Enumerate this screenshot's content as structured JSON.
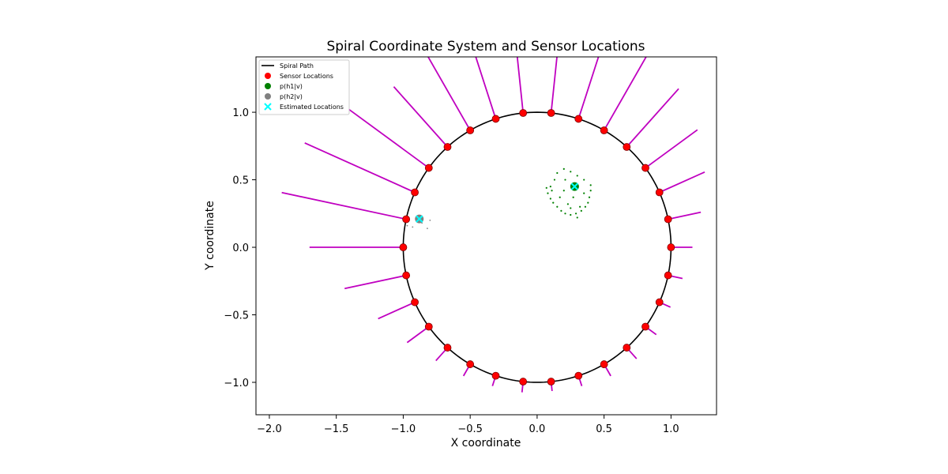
{
  "chart_data": {
    "type": "scatter",
    "title": "Spiral Coordinate System and Sensor Locations",
    "xlabel": "X coordinate",
    "ylabel": "Y coordinate",
    "xlim": [
      -2.1,
      1.34
    ],
    "ylim": [
      -1.24,
      1.41
    ],
    "xticks": [
      -2.0,
      -1.5,
      -1.0,
      -0.5,
      0.0,
      0.5,
      1.0
    ],
    "xtick_labels": [
      "−2.0",
      "−1.5",
      "−1.0",
      "−0.5",
      "0.0",
      "0.5",
      "1.0"
    ],
    "yticks": [
      -1.0,
      -0.5,
      0.0,
      0.5,
      1.0
    ],
    "ytick_labels": [
      "−1.0",
      "−0.5",
      "0.0",
      "0.5",
      "1.0"
    ],
    "grid": false,
    "legend": {
      "location": "upper-left",
      "entries": [
        {
          "label": "Spiral Path",
          "marker": "line",
          "color": "#000000"
        },
        {
          "label": "Sensor Locations",
          "marker": "circle",
          "color": "#ff0000"
        },
        {
          "label": "p(h1|v)",
          "marker": "circle",
          "color": "#008000"
        },
        {
          "label": "p(h2|v)",
          "marker": "circle",
          "color": "#808080"
        },
        {
          "label": "Estimated Locations",
          "marker": "x",
          "color": "#00ffff"
        }
      ]
    },
    "spiral_path": {
      "shape": "circle",
      "center": [
        0,
        0
      ],
      "radius": 1.0,
      "color": "#000000"
    },
    "sensor_color": "#ff0000",
    "sensor_edge_color": "#800000",
    "sensor_angles_deg": [
      0,
      12,
      24,
      36,
      48,
      60,
      72,
      84,
      96,
      108,
      120,
      132,
      144,
      156,
      168,
      180,
      192,
      204,
      216,
      228,
      240,
      252,
      264,
      276,
      288,
      300,
      312,
      324,
      336,
      348
    ],
    "measurement_color": "#c000c0",
    "measurement_lengths": [
      0.16,
      0.25,
      0.37,
      0.48,
      0.58,
      0.65,
      0.71,
      0.75,
      0.76,
      0.72,
      0.66,
      0.6,
      0.74,
      0.9,
      0.95,
      0.7,
      0.47,
      0.3,
      0.2,
      0.13,
      0.1,
      0.08,
      0.08,
      0.07,
      0.08,
      0.1,
      0.11,
      0.1,
      0.09,
      0.11
    ],
    "posterior_h1": {
      "color": "#008000",
      "points": [
        [
          0.13,
          0.5
        ],
        [
          0.15,
          0.55
        ],
        [
          0.2,
          0.58
        ],
        [
          0.25,
          0.56
        ],
        [
          0.3,
          0.53
        ],
        [
          0.35,
          0.5
        ],
        [
          0.4,
          0.46
        ],
        [
          0.4,
          0.42
        ],
        [
          0.39,
          0.37
        ],
        [
          0.36,
          0.3
        ],
        [
          0.33,
          0.27
        ],
        [
          0.29,
          0.25
        ],
        [
          0.25,
          0.24
        ],
        [
          0.21,
          0.25
        ],
        [
          0.18,
          0.27
        ],
        [
          0.15,
          0.3
        ],
        [
          0.12,
          0.33
        ],
        [
          0.1,
          0.36
        ],
        [
          0.08,
          0.4
        ],
        [
          0.07,
          0.44
        ],
        [
          0.1,
          0.45
        ],
        [
          0.2,
          0.42
        ],
        [
          0.23,
          0.32
        ],
        [
          0.32,
          0.3
        ],
        [
          0.3,
          0.22
        ],
        [
          0.17,
          0.37
        ],
        [
          0.27,
          0.37
        ],
        [
          0.21,
          0.5
        ],
        [
          0.35,
          0.4
        ],
        [
          0.11,
          0.42
        ],
        [
          0.25,
          0.29
        ],
        [
          0.38,
          0.33
        ]
      ]
    },
    "posterior_h2": {
      "color": "#808080",
      "points": [
        [
          -0.97,
          0.16
        ],
        [
          -0.93,
          0.15
        ],
        [
          -0.82,
          0.14
        ],
        [
          -0.8,
          0.2
        ],
        [
          -0.86,
          0.18
        ],
        [
          -0.9,
          0.19
        ]
      ]
    },
    "estimated_locations": {
      "color": "#00ffff",
      "points": [
        [
          0.28,
          0.45
        ],
        [
          -0.88,
          0.21
        ]
      ]
    }
  }
}
